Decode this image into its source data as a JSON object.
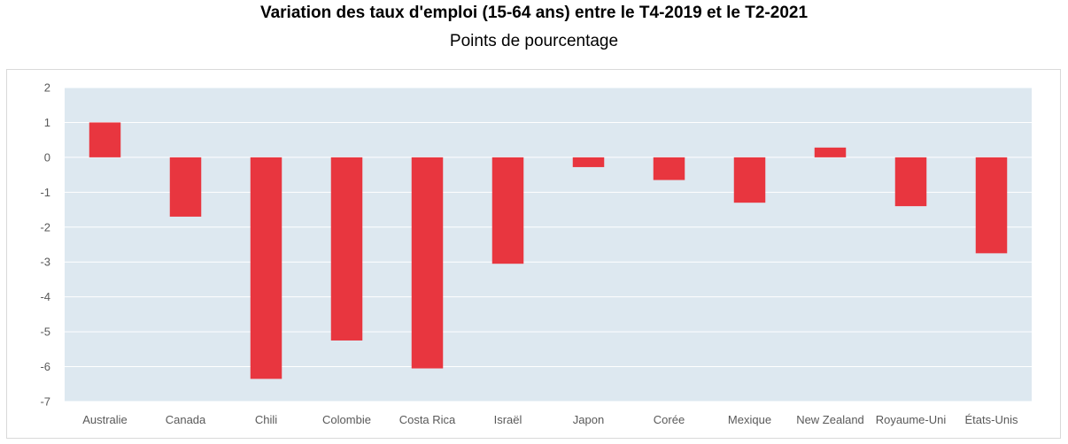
{
  "chart_data": {
    "type": "bar",
    "title": "Variation des taux d'emploi (15-64 ans) entre le T4-2019 et le T2-2021",
    "subtitle": "Points de pourcentage",
    "categories": [
      "Australie",
      "Canada",
      "Chili",
      "Colombie",
      "Costa Rica",
      "Israël",
      "Japon",
      "Corée",
      "Mexique",
      "New Zealand",
      "Royaume-Uni",
      "États-Unis"
    ],
    "values": [
      1.0,
      -1.7,
      -6.35,
      -5.25,
      -6.05,
      -3.05,
      -0.28,
      -0.65,
      -1.3,
      0.28,
      -1.4,
      -2.75
    ],
    "ylim": [
      -7,
      2
    ],
    "yticks": [
      2,
      1,
      0,
      -1,
      -2,
      -3,
      -4,
      -5,
      -6,
      -7
    ],
    "grid": true,
    "colors": {
      "bar": "#e8363f",
      "plot_background": "#dde8f0",
      "gridline": "#ffffff"
    }
  }
}
